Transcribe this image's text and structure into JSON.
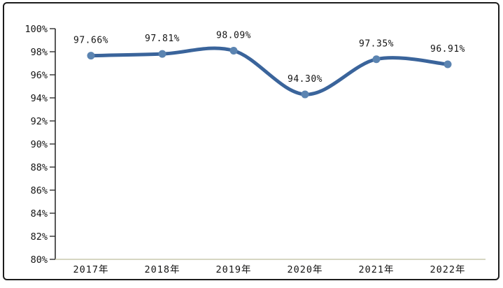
{
  "chart_data": {
    "type": "line",
    "title": "",
    "xlabel": "",
    "ylabel": "",
    "categories": [
      "2017年",
      "2018年",
      "2019年",
      "2020年",
      "2021年",
      "2022年"
    ],
    "series": [
      {
        "name": "percentage",
        "values": [
          97.66,
          97.81,
          98.09,
          94.3,
          97.35,
          96.91
        ]
      }
    ],
    "data_labels": [
      "97.66%",
      "97.81%",
      "98.09%",
      "94.30%",
      "97.35%",
      "96.91%"
    ],
    "y_ticks": [
      "100%",
      "98%",
      "96%",
      "94%",
      "92%",
      "90%",
      "88%",
      "86%",
      "84%",
      "82%",
      "80%"
    ],
    "y_tick_values": [
      100,
      98,
      96,
      94,
      92,
      90,
      88,
      86,
      84,
      82,
      80
    ],
    "ylim": [
      80,
      100
    ],
    "grid": false,
    "legend_position": "none",
    "line_smooth": true,
    "colors": {
      "line": "#3a649b",
      "marker": "#5b84b1",
      "y_axis": "#2e2e2e",
      "x_axis": "#c9c9ad",
      "label_text": "#141414",
      "frame_border": "#1c1c1c",
      "background": "#ffffff"
    }
  }
}
